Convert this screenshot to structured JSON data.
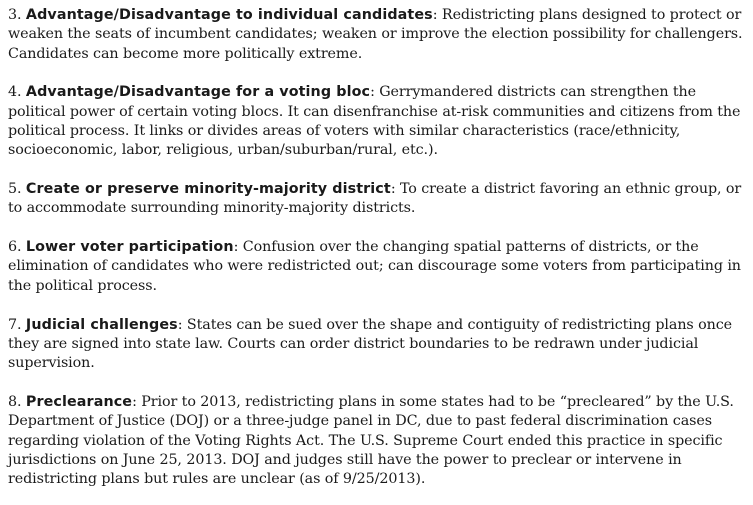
{
  "items": [
    {
      "number": "3.",
      "term": "Advantage/Disadvantage to individual candidates",
      "text": ": Redistricting plans designed to protect or weaken the seats of incumbent candidates; weaken or improve the election possibility for challengers. Candidates can become more politically extreme."
    },
    {
      "number": "4.",
      "term": "Advantage/Disadvantage for a voting bloc",
      "text": ": Gerrymandered districts can strengthen the political power of certain voting blocs. It can disenfranchise at-risk communities and citizens from the political process. It links or divides areas of voters with similar characteristics (race/ethnicity, socioeconomic, labor, religious, urban/suburban/rural, etc.)."
    },
    {
      "number": "5.",
      "term": "Create or preserve minority-majority district",
      "text": ": To create a district favoring an ethnic group, or to accommodate surrounding minority-majority districts."
    },
    {
      "number": "6.",
      "term": "Lower voter participation",
      "text": ": Confusion over the changing spatial patterns of districts, or the elimination of candidates who were redistricted out; can discourage some voters from participating in the political process."
    },
    {
      "number": "7.",
      "term": "Judicial challenges",
      "text": ": States can be sued over the shape and contiguity of redistricting plans once they are signed into state law. Courts can order district boundaries to be redrawn under judicial supervision."
    },
    {
      "number": "8.",
      "term": "Preclearance",
      "text": ": Prior to 2013, redistricting plans in some states had to be “precleared” by the U.S. Department of Justice (DOJ) or a three-judge panel in DC, due to past federal discrimination cases regarding violation of the Voting Rights Act. The U.S. Supreme Court ended this practice in specific jurisdictions on June 25, 2013. DOJ and judges still have the power to preclear or intervene in redistricting plans but rules are unclear (as of 9/25/2013)."
    }
  ]
}
